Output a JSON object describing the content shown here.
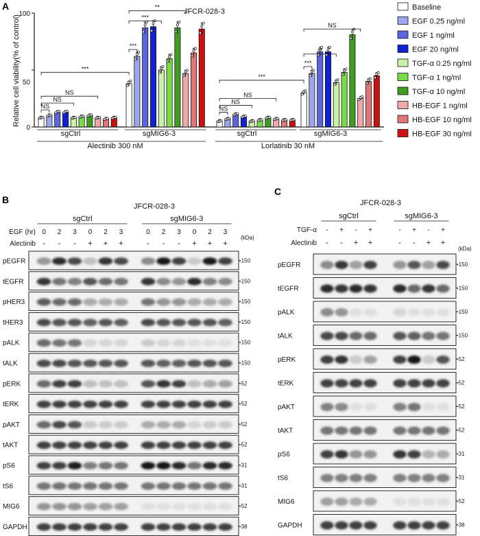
{
  "panel_a": {
    "letter": "A",
    "title": "JFCR-028-3",
    "chart_data": {
      "type": "bar",
      "ylabel": "Relative cell viability(% of control)",
      "ylim": [
        0,
        100
      ],
      "yticks": [
        "0",
        "50",
        "100"
      ],
      "treatments": [
        "Baseline",
        "EGF 0.25 ng/ml",
        "EGF 1 ng/ml",
        "EGF 20 ng/ml",
        "TGF-α 0.25 ng/ml",
        "TGF-α 1 ng/ml",
        "TGF-α 10 ng/ml",
        "HB-EGF 1 ng/ml",
        "HB-EGF 10 ng/ml",
        "HB-EGF 30 ng/ml"
      ],
      "colors": [
        "#ffffff",
        "#9ca6ea",
        "#5b66de",
        "#1021d6",
        "#c9f2a9",
        "#79db47",
        "#3f9e22",
        "#f0a8a8",
        "#e07676",
        "#cc1111"
      ],
      "groups": [
        {
          "cell": "sgCtrl",
          "drug": "Alectinib 300 nM",
          "values": [
            8,
            10,
            13,
            13,
            8,
            9,
            10,
            8,
            7,
            8
          ]
        },
        {
          "cell": "sgMIG6-3",
          "drug": "Alectinib 300 nM",
          "values": [
            38,
            62,
            87,
            88,
            50,
            60,
            87,
            47,
            65,
            86
          ]
        },
        {
          "cell": "sgCtrl",
          "drug": "Lorlatinib 30 nM",
          "values": [
            5,
            7,
            11,
            9,
            5,
            6,
            8,
            7,
            6,
            6
          ]
        },
        {
          "cell": "sgMIG6-3",
          "drug": "Lorlatinib 30 nM",
          "values": [
            30,
            47,
            66,
            66,
            39,
            48,
            81,
            25,
            40,
            45
          ]
        }
      ],
      "cell_labels": [
        "sgCtrl",
        "sgMIG6-3",
        "sgCtrl",
        "sgMIG6-3"
      ],
      "drug_labels": [
        "Alectinib 300 nM",
        "Lorlatinib 30 nM"
      ],
      "annotations": [
        "NS",
        "NS",
        "NS",
        "***",
        "***",
        "***",
        "**",
        "NS",
        "NS",
        "NS",
        "***",
        "***",
        "**",
        "NS"
      ],
      "legend_position": "right"
    }
  },
  "panel_b": {
    "letter": "B",
    "title": "JFCR-028-3",
    "groups": [
      "sgCtrl",
      "sgMIG6-3"
    ],
    "row1_label": "EGF (hr)",
    "row1_values": [
      "0",
      "2",
      "3",
      "0",
      "2",
      "3",
      "0",
      "2",
      "3",
      "0",
      "2",
      "3"
    ],
    "row2_label": "Alectinib",
    "row2_values": [
      "-",
      "-",
      "-",
      "+",
      "+",
      "+",
      "-",
      "-",
      "-",
      "+",
      "+",
      "+"
    ],
    "kda": "(kDa)",
    "blots": [
      {
        "name": "pEGFR",
        "mw": "150",
        "pattern": [
          0.4,
          0.9,
          0.75,
          0.2,
          0.85,
          0.75,
          0.45,
          1,
          0.8,
          0.15,
          1,
          0.8
        ]
      },
      {
        "name": "tEGFR",
        "mw": "150",
        "pattern": [
          0.85,
          0.55,
          0.5,
          0.7,
          0.6,
          0.55,
          0.85,
          0.45,
          0.4,
          0.9,
          0.5,
          0.45
        ]
      },
      {
        "name": "pHER3",
        "mw": "150",
        "pattern": [
          0.65,
          0.6,
          0.6,
          0.3,
          0.3,
          0.3,
          0.55,
          0.4,
          0.4,
          0.3,
          0.3,
          0.3
        ]
      },
      {
        "name": "tHER3",
        "mw": "150",
        "pattern": [
          0.75,
          0.7,
          0.7,
          0.65,
          0.7,
          0.65,
          0.75,
          0.7,
          0.7,
          0.7,
          0.7,
          0.65
        ]
      },
      {
        "name": "pALK",
        "mw": "150",
        "pattern": [
          0.6,
          0.55,
          0.55,
          0.1,
          0.1,
          0.1,
          0.15,
          0.1,
          0.1,
          0.05,
          0.05,
          0.05
        ]
      },
      {
        "name": "tALK",
        "mw": "150",
        "pattern": [
          0.75,
          0.75,
          0.7,
          0.7,
          0.7,
          0.7,
          0.7,
          0.65,
          0.65,
          0.7,
          0.7,
          0.7
        ]
      },
      {
        "name": "pERK",
        "mw": "52",
        "pattern": [
          0.6,
          0.8,
          0.8,
          0.2,
          0.2,
          0.2,
          0.7,
          0.85,
          0.8,
          0.2,
          0.3,
          0.35
        ]
      },
      {
        "name": "tERK",
        "mw": "52",
        "pattern": [
          0.8,
          0.8,
          0.8,
          0.8,
          0.8,
          0.8,
          0.8,
          0.8,
          0.8,
          0.8,
          0.8,
          0.8
        ]
      },
      {
        "name": "pAKT",
        "mw": "52",
        "pattern": [
          0.6,
          0.75,
          0.7,
          0.15,
          0.15,
          0.15,
          0.3,
          0.3,
          0.3,
          0.1,
          0.15,
          0.15
        ]
      },
      {
        "name": "tAKT",
        "mw": "52",
        "pattern": [
          0.8,
          0.8,
          0.8,
          0.8,
          0.8,
          0.8,
          0.8,
          0.8,
          0.8,
          0.8,
          0.8,
          0.8
        ]
      },
      {
        "name": "pS6",
        "mw": "31",
        "pattern": [
          0.8,
          0.8,
          0.95,
          0.5,
          0.55,
          0.55,
          1,
          1,
          0.9,
          0.55,
          0.9,
          0.9
        ]
      },
      {
        "name": "tS6",
        "mw": "31",
        "pattern": [
          0.55,
          0.55,
          0.55,
          0.55,
          0.55,
          0.55,
          0.55,
          0.55,
          0.55,
          0.55,
          0.55,
          0.55
        ]
      },
      {
        "name": "MIG6",
        "mw": "52",
        "pattern": [
          0.4,
          0.4,
          0.4,
          0.35,
          0.35,
          0.35,
          0.05,
          0.05,
          0.05,
          0.05,
          0.05,
          0.05
        ]
      },
      {
        "name": "GAPDH",
        "mw": "38",
        "pattern": [
          0.8,
          0.8,
          0.8,
          0.8,
          0.8,
          0.8,
          0.8,
          0.8,
          0.8,
          0.8,
          0.8,
          0.8
        ]
      }
    ]
  },
  "panel_c": {
    "letter": "C",
    "title": "JFCR-028-3",
    "groups": [
      "sgCtrl",
      "sgMIG6-3"
    ],
    "row1_label": "TGF-α",
    "row1_values": [
      "-",
      "+",
      "-",
      "+",
      "-",
      "+",
      "-",
      "+"
    ],
    "row2_label": "Alectinib",
    "row2_values": [
      "-",
      "-",
      "+",
      "+",
      "-",
      "-",
      "+",
      "+"
    ],
    "kda": "(kDa)",
    "blots": [
      {
        "name": "pEGFR",
        "mw": "150",
        "pattern": [
          0.45,
          0.85,
          0.35,
          0.8,
          0.4,
          0.7,
          0.35,
          0.75
        ]
      },
      {
        "name": "tEGFR",
        "mw": "150",
        "pattern": [
          0.9,
          0.85,
          0.9,
          0.85,
          0.9,
          0.6,
          0.85,
          0.6
        ]
      },
      {
        "name": "pALK",
        "mw": "150",
        "pattern": [
          0.45,
          0.4,
          0.05,
          0.05,
          0.1,
          0.05,
          0.05,
          0.05
        ]
      },
      {
        "name": "tALK",
        "mw": "150",
        "pattern": [
          0.75,
          0.75,
          0.6,
          0.6,
          0.7,
          0.65,
          0.55,
          0.55
        ]
      },
      {
        "name": "pERK",
        "mw": "52",
        "pattern": [
          0.8,
          0.85,
          0.15,
          0.35,
          0.8,
          1,
          0.15,
          0.7
        ]
      },
      {
        "name": "tERK",
        "mw": "52",
        "pattern": [
          0.8,
          0.8,
          0.8,
          0.8,
          0.8,
          0.8,
          0.8,
          0.8
        ]
      },
      {
        "name": "pAKT",
        "mw": "52",
        "pattern": [
          0.5,
          0.45,
          0.05,
          0.05,
          0.5,
          0.55,
          0.05,
          0.05
        ]
      },
      {
        "name": "tAKT",
        "mw": "52",
        "pattern": [
          0.55,
          0.55,
          0.55,
          0.55,
          0.55,
          0.55,
          0.55,
          0.55
        ]
      },
      {
        "name": "pS6",
        "mw": "31",
        "pattern": [
          0.8,
          0.85,
          0.4,
          0.4,
          0.85,
          0.8,
          0.25,
          0.3
        ]
      },
      {
        "name": "tS6",
        "mw": "31",
        "pattern": [
          0.5,
          0.5,
          0.5,
          0.5,
          0.5,
          0.5,
          0.5,
          0.5
        ]
      },
      {
        "name": "MIG6",
        "mw": "52",
        "pattern": [
          0.35,
          0.35,
          0.3,
          0.3,
          0.05,
          0.05,
          0.05,
          0.05
        ]
      },
      {
        "name": "GAPDH",
        "mw": "38",
        "pattern": [
          0.8,
          0.8,
          0.8,
          0.8,
          0.8,
          0.8,
          0.8,
          0.8
        ]
      }
    ]
  }
}
